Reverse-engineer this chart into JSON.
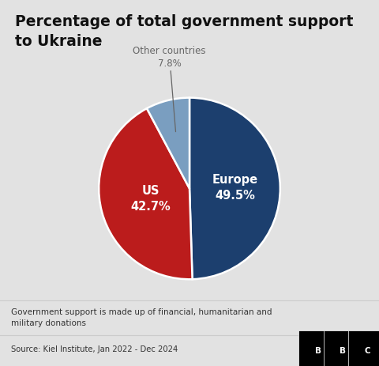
{
  "title": "Percentage of total government support\nto Ukraine",
  "slices": [
    49.5,
    42.7,
    7.8
  ],
  "labels": [
    "Europe",
    "US",
    "Other countries"
  ],
  "colors": [
    "#1c3f6e",
    "#bb1c1c",
    "#7a9ec0"
  ],
  "footnote": "Government support is made up of financial, humanitarian and\nmilitary donations",
  "source": "Source: Kiel Institute, Jan 2022 - Dec 2024",
  "bg_color": "#e2e2e2",
  "title_bg_color": "#ffffff",
  "footer_bg_color": "#ffffff",
  "source_bg_color": "#d8d8d8",
  "annotation_color": "#666666",
  "europe_label": "Europe\n49.5%",
  "us_label": "US\n42.7%",
  "other_label": "Other countries\n7.8%"
}
